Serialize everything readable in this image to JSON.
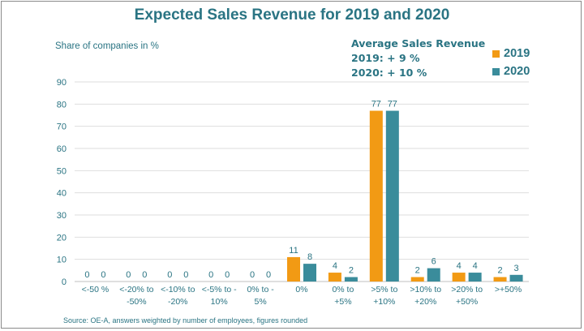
{
  "colors": {
    "series_2019": "#f29a14",
    "series_2020": "#3a8c9b",
    "text": "#2a7483",
    "grid": "#dedede"
  },
  "annotation": {
    "title": "Average Sales Revenue",
    "line_2019": "2019: + 9 %",
    "line_2020": "2020: + 10 %"
  },
  "source": "Source: OE-A, answers weighted by number of employees, figures rounded",
  "chart_data": {
    "type": "bar",
    "title": "Expected Sales Revenue for 2019 and 2020",
    "ylabel": "Share of companies in %",
    "xlabel": "",
    "ylim": [
      0,
      90
    ],
    "yticks": [
      0,
      10,
      20,
      30,
      40,
      50,
      60,
      70,
      80,
      90
    ],
    "grid": true,
    "legend_position": "top-right",
    "categories": [
      "<-50 %",
      "<-20% to -50%",
      "<-10% to -20%",
      "<-5% to -10%",
      "0% to -5%",
      "0%",
      "0% to +5%",
      ">5% to +10%",
      ">10% to +20%",
      ">20% to +50%",
      ">+50%"
    ],
    "category_lines": [
      [
        "<-50 %"
      ],
      [
        "<-20% to",
        "-50%"
      ],
      [
        "<-10% to",
        "-20%"
      ],
      [
        "<-5% to -",
        "10%"
      ],
      [
        "0% to -",
        "5%"
      ],
      [
        "0%"
      ],
      [
        "0% to",
        "+5%"
      ],
      [
        ">5% to",
        "+10%"
      ],
      [
        ">10% to",
        "+20%"
      ],
      [
        ">20% to",
        "+50%"
      ],
      [
        ">+50%"
      ]
    ],
    "series": [
      {
        "name": "2019",
        "values": [
          0,
          0,
          0,
          0,
          0,
          11,
          4,
          77,
          2,
          4,
          2
        ]
      },
      {
        "name": "2020",
        "values": [
          0,
          0,
          0,
          0,
          0,
          8,
          2,
          77,
          6,
          4,
          3
        ]
      }
    ]
  }
}
